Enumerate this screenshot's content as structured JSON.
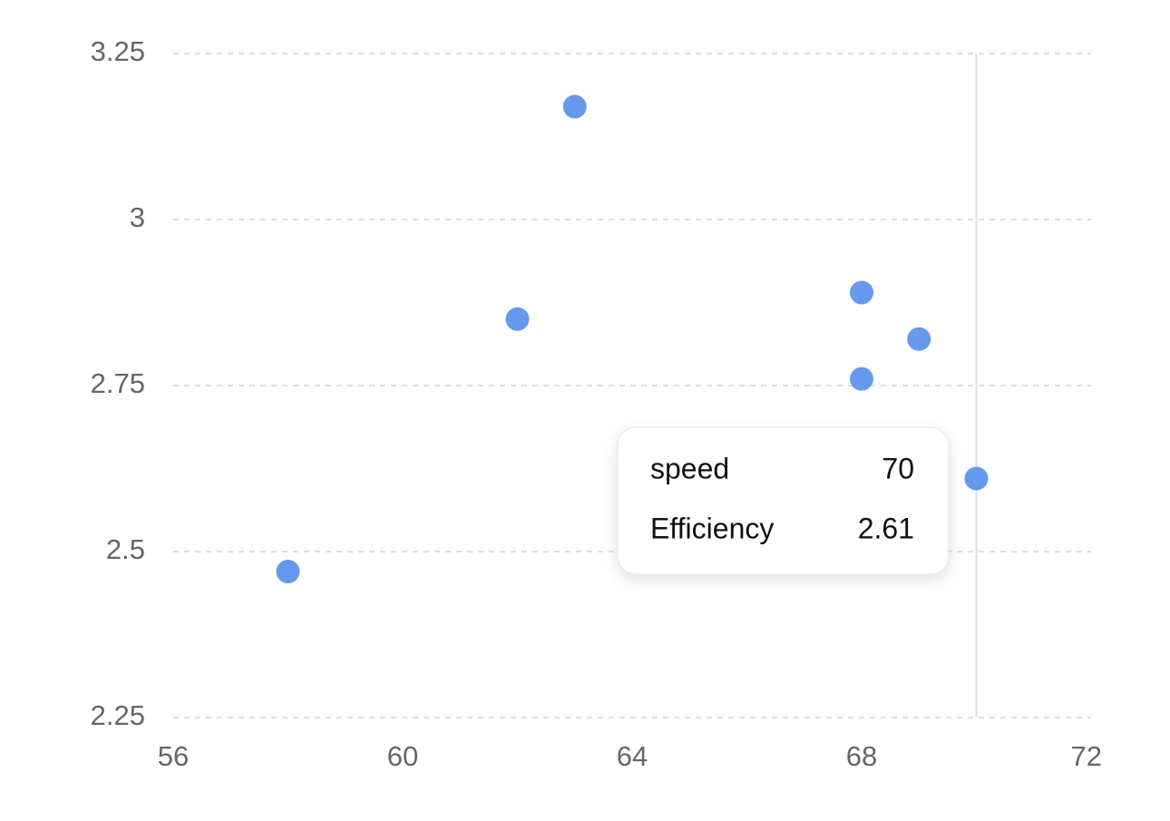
{
  "chart_data": {
    "type": "scatter",
    "x_label": "speed",
    "y_label": "Efficiency",
    "x": [
      58,
      62,
      63,
      68,
      69,
      68,
      70
    ],
    "values": [
      2.47,
      2.85,
      3.17,
      2.89,
      2.82,
      2.76,
      2.61
    ],
    "color": "#6699ee",
    "xlim": [
      56,
      72
    ],
    "xticks": [
      56,
      60,
      64,
      68,
      72
    ],
    "ylim": [
      2.25,
      3.25
    ],
    "yticks": [
      2.25,
      2.5,
      2.75,
      3,
      3.25
    ],
    "grid": true
  }
}
